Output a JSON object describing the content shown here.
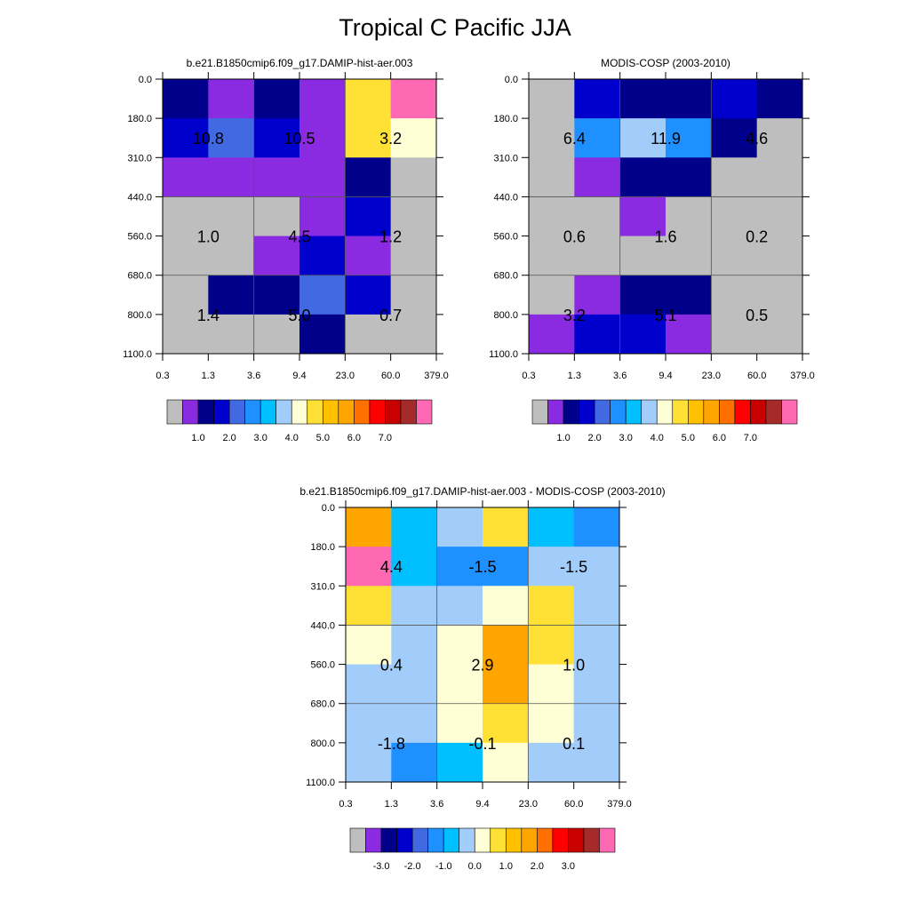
{
  "title": "Tropical C Pacific JJA",
  "colors": {
    "missing": "#bebebe",
    "grid_line": "#000000",
    "abs_palette": [
      "#bebebe",
      "#8a2be2",
      "#00008b",
      "#0000cd",
      "#4169e1",
      "#1e90ff",
      "#00bfff",
      "#a2cdfa",
      "#ffffd5",
      "#ffe135",
      "#ffc000",
      "#ffa500",
      "#ff7000",
      "#ff0000",
      "#c80000",
      "#a52a2a",
      "#ff69b4"
    ],
    "diff_palette": [
      "#bebebe",
      "#8a2be2",
      "#00008b",
      "#0000cd",
      "#4169e1",
      "#1e90ff",
      "#00bfff",
      "#a2cdfa",
      "#ffffd5",
      "#ffe135",
      "#ffc000",
      "#ffa500",
      "#ff7000",
      "#ff0000",
      "#c80000",
      "#a52a2a",
      "#ff69b4"
    ]
  },
  "chart_data": [
    {
      "type": "heatmap",
      "title": "b.e21.B1850cmip6.f09_g17.DAMIP-hist-aer.003",
      "x_tick_labels": [
        "0.3",
        "1.3",
        "3.6",
        "9.4",
        "23.0",
        "60.0",
        "379.0"
      ],
      "y_tick_labels": [
        "0.0",
        "180.0",
        "310.0",
        "440.0",
        "560.0",
        "680.0",
        "800.0",
        "1100.0"
      ],
      "cell_color_index": [
        [
          2,
          1,
          2,
          1,
          9,
          16,
          1
        ],
        [
          3,
          4,
          3,
          1,
          9,
          8,
          4
        ],
        [
          1,
          1,
          1,
          1,
          2,
          0,
          0
        ],
        [
          0,
          0,
          0,
          1,
          3,
          0,
          0
        ],
        [
          0,
          0,
          1,
          3,
          1,
          0,
          0
        ],
        [
          0,
          2,
          2,
          4,
          3,
          0,
          0
        ],
        [
          0,
          0,
          0,
          2,
          0,
          0,
          0
        ]
      ],
      "block_values": [
        {
          "label": "10.8",
          "col": 0.5,
          "row": 1.5
        },
        {
          "label": "10.5",
          "col": 1.5,
          "row": 1.5
        },
        {
          "label": "3.2",
          "col": 2.5,
          "row": 1.5
        },
        {
          "label": "1.0",
          "col": 0.5,
          "row": 4
        },
        {
          "label": "4.5",
          "col": 1.5,
          "row": 4
        },
        {
          "label": "1.2",
          "col": 2.5,
          "row": 4
        },
        {
          "label": "1.4",
          "col": 0.5,
          "row": 6
        },
        {
          "label": "5.0",
          "col": 1.5,
          "row": 6
        },
        {
          "label": "0.7",
          "col": 2.5,
          "row": 6
        }
      ],
      "colorbar_labels": [
        "1.0",
        "2.0",
        "3.0",
        "4.0",
        "5.0",
        "6.0",
        "7.0"
      ]
    },
    {
      "type": "heatmap",
      "title": "MODIS-COSP (2003-2010)",
      "x_tick_labels": [
        "0.3",
        "1.3",
        "3.6",
        "9.4",
        "23.0",
        "60.0",
        "379.0"
      ],
      "y_tick_labels": [
        "0.0",
        "180.0",
        "310.0",
        "440.0",
        "560.0",
        "680.0",
        "800.0",
        "1100.0"
      ],
      "block_values": [
        {
          "label": "6.4",
          "col": 0.5,
          "row": 1.5
        },
        {
          "label": "11.9",
          "col": 1.5,
          "row": 1.5
        },
        {
          "label": "4.6",
          "col": 2.5,
          "row": 1.5
        },
        {
          "label": "0.6",
          "col": 0.5,
          "row": 4
        },
        {
          "label": "1.6",
          "col": 1.5,
          "row": 4
        },
        {
          "label": "0.2",
          "col": 2.5,
          "row": 4
        },
        {
          "label": "3.2",
          "col": 0.5,
          "row": 6
        },
        {
          "label": "5.1",
          "col": 1.5,
          "row": 6
        },
        {
          "label": "0.5",
          "col": 2.5,
          "row": 6
        }
      ],
      "colorbar_labels": [
        "1.0",
        "2.0",
        "3.0",
        "4.0",
        "5.0",
        "6.0",
        "7.0"
      ]
    },
    {
      "type": "heatmap",
      "title": "b.e21.B1850cmip6.f09_g17.DAMIP-hist-aer.003 - MODIS-COSP (2003-2010)",
      "x_tick_labels": [
        "0.3",
        "1.3",
        "3.6",
        "9.4",
        "23.0",
        "60.0",
        "379.0"
      ],
      "y_tick_labels": [
        "0.0",
        "180.0",
        "310.0",
        "440.0",
        "560.0",
        "680.0",
        "800.0",
        "1100.0"
      ],
      "block_values": [
        {
          "label": "4.4",
          "col": 0.5,
          "row": 1.5
        },
        {
          "label": "-1.5",
          "col": 1.5,
          "row": 1.5
        },
        {
          "label": "-1.5",
          "col": 2.5,
          "row": 1.5
        },
        {
          "label": "0.4",
          "col": 0.5,
          "row": 4
        },
        {
          "label": "2.9",
          "col": 1.5,
          "row": 4
        },
        {
          "label": "1.0",
          "col": 2.5,
          "row": 4
        },
        {
          "label": "-1.8",
          "col": 0.5,
          "row": 6
        },
        {
          "label": "-0.1",
          "col": 1.5,
          "row": 6
        },
        {
          "label": "0.1",
          "col": 2.5,
          "row": 6
        }
      ],
      "colorbar_labels": [
        "-3.0",
        "-2.0",
        "-1.0",
        "0.0",
        "1.0",
        "2.0",
        "3.0"
      ]
    }
  ]
}
